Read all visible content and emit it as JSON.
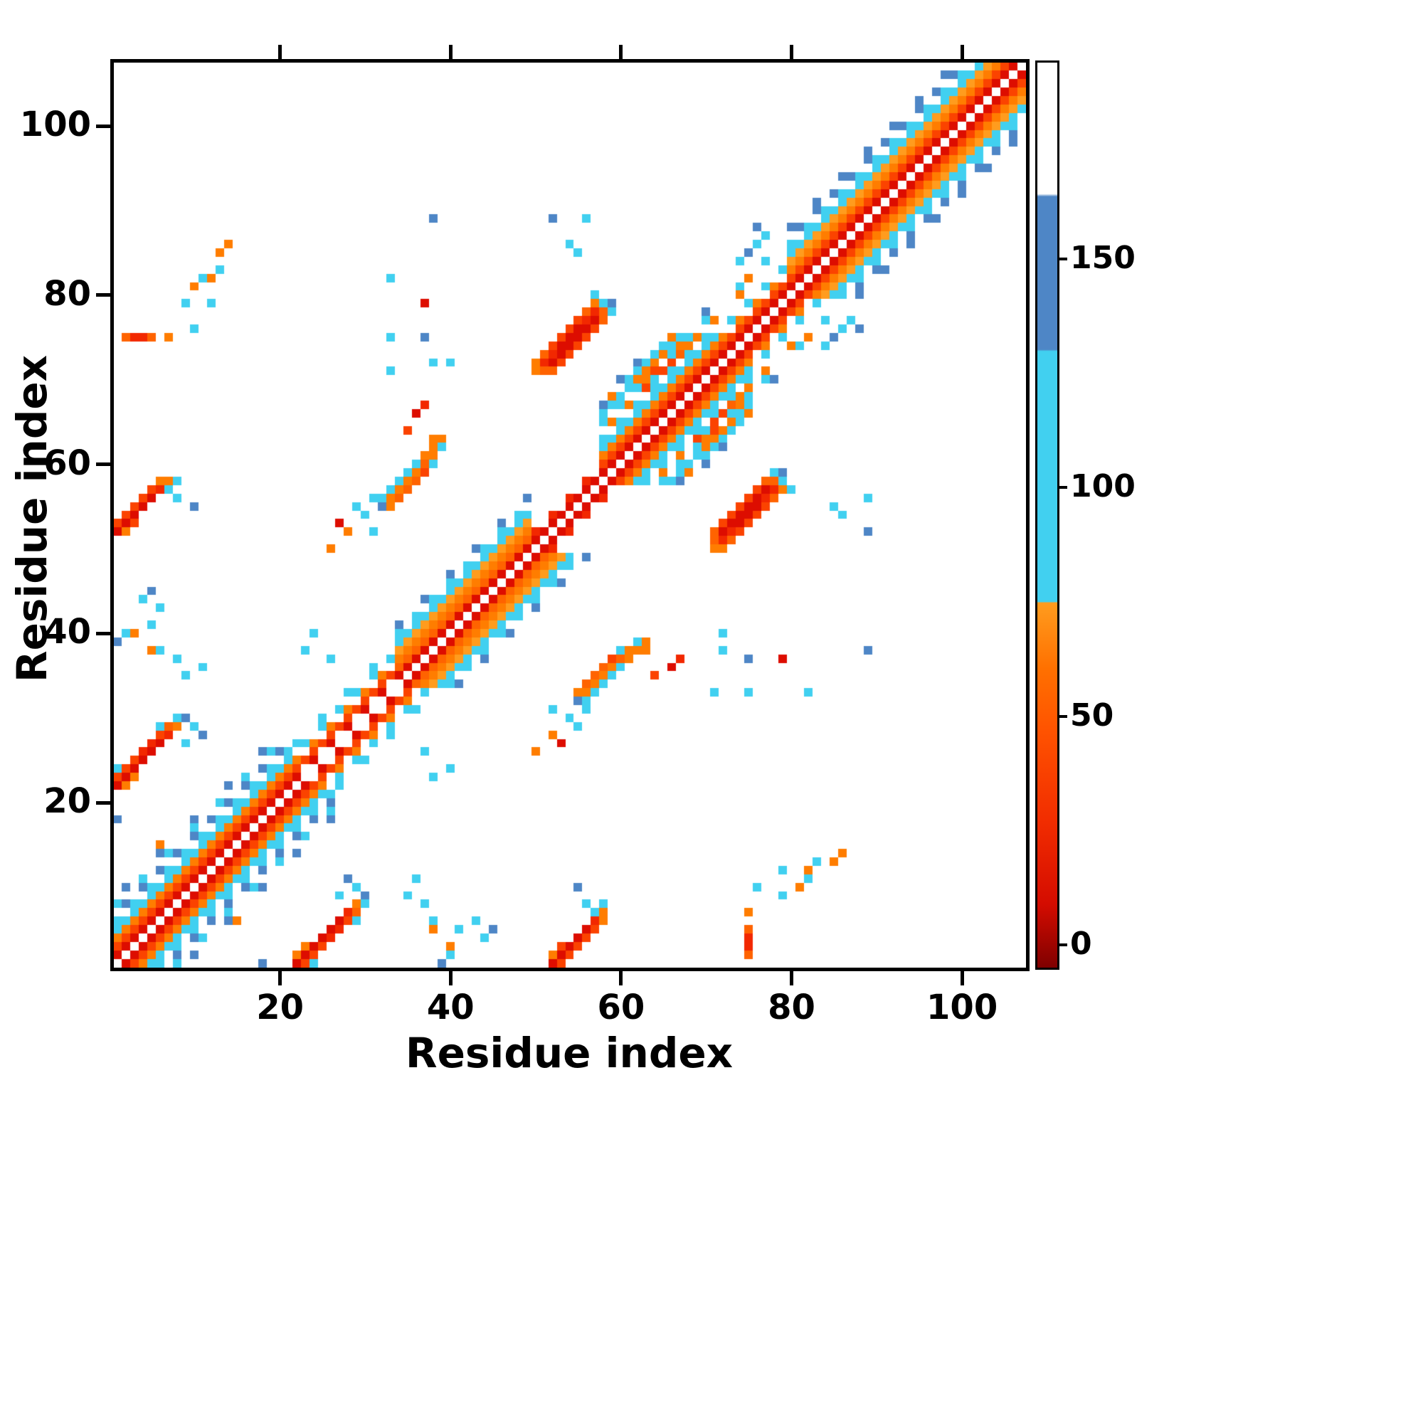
{
  "figure": {
    "background": "#ffffff"
  },
  "chart_data": {
    "type": "heatmap",
    "title": "",
    "xlabel": "Residue index",
    "ylabel": "Residue index",
    "n_residues": 107,
    "x_range": [
      0.5,
      107.5
    ],
    "y_range": [
      0.5,
      107.5
    ],
    "x_ticks": [
      20,
      40,
      60,
      80,
      100
    ],
    "y_ticks": [
      20,
      40,
      60,
      80,
      100
    ],
    "grid": false,
    "symmetric": true,
    "colorbar": {
      "range": [
        -5,
        193
      ],
      "ticks": [
        0,
        50,
        100,
        150
      ],
      "gradient_stops": [
        {
          "p": 0,
          "c": "#7f0000"
        },
        {
          "p": 7,
          "c": "#d40c00"
        },
        {
          "p": 16,
          "c": "#f12c00"
        },
        {
          "p": 26,
          "c": "#ff5200"
        },
        {
          "p": 33,
          "c": "#ff7000"
        },
        {
          "p": 40.3,
          "c": "#ff9c1e"
        },
        {
          "p": 40.45,
          "c": "#41d0f0"
        },
        {
          "p": 68.1,
          "c": "#41d0f0"
        },
        {
          "p": 68.3,
          "c": "#4e86c6"
        },
        {
          "p": 85.2,
          "c": "#4e86c6"
        },
        {
          "p": 85.5,
          "c": "#ffffff"
        },
        {
          "p": 100,
          "c": "#ffffff"
        }
      ]
    },
    "colormap_bins": [
      {
        "max": 12,
        "color": "#dd0d00"
      },
      {
        "max": 24,
        "color": "#f22800"
      },
      {
        "max": 38,
        "color": "#fb4300"
      },
      {
        "max": 52,
        "color": "#ff6300"
      },
      {
        "max": 64,
        "color": "#ff7d00"
      },
      {
        "max": 75,
        "color": "#ff9c1e"
      },
      {
        "max": 130,
        "color": "#41d0f0"
      },
      {
        "max": 164,
        "color": "#4e86c6"
      },
      {
        "max": 999,
        "color": "#ffffff"
      }
    ],
    "band_segments": [
      {
        "from": 1,
        "to": 21,
        "stripes": [
          {
            "off": 1,
            "v": 8
          },
          {
            "off": 2,
            "v": 30
          },
          {
            "off": 3,
            "v": 62
          },
          {
            "off": 4,
            "v": 100
          },
          {
            "off": 5,
            "v": 100,
            "step": 2
          },
          {
            "off": 6,
            "v": 145,
            "step": 2,
            "phase": 1
          },
          {
            "off": 7,
            "v": 100,
            "step": 3
          },
          {
            "off": 8,
            "v": 150,
            "step": 4,
            "phase": 1
          }
        ]
      },
      {
        "from": 22,
        "to": 33,
        "stripes": [
          {
            "off": 1,
            "v": 8,
            "step": 2
          },
          {
            "off": 2,
            "v": 25
          },
          {
            "off": 3,
            "v": 62,
            "step": 2
          },
          {
            "off": 4,
            "v": 100,
            "step": 2,
            "phase": 1
          },
          {
            "off": 5,
            "v": 100,
            "step": 3
          }
        ]
      },
      {
        "from": 34,
        "to": 49,
        "stripes": [
          {
            "off": 1,
            "v": 10
          },
          {
            "off": 2,
            "v": 40
          },
          {
            "off": 3,
            "v": 62
          },
          {
            "off": 4,
            "v": 68
          },
          {
            "off": 5,
            "v": 100
          },
          {
            "off": 6,
            "v": 100,
            "step": 2
          },
          {
            "off": 7,
            "v": 145,
            "step": 3
          }
        ]
      },
      {
        "from": 50,
        "to": 57,
        "stripes": [
          {
            "off": 1,
            "v": 6
          },
          {
            "off": 2,
            "v": 20,
            "step": 2
          }
        ]
      },
      {
        "from": 58,
        "to": 71,
        "stripes": [
          {
            "off": 1,
            "v": 10
          },
          {
            "off": 2,
            "v": 35
          },
          {
            "off": 3,
            "v": 62
          },
          {
            "off": 4,
            "v": 100
          },
          {
            "off": 5,
            "v": 100,
            "step": 2
          },
          {
            "off": 6,
            "v": 62,
            "step": 2,
            "phase": 1
          },
          {
            "off": 7,
            "v": 100,
            "step": 2
          },
          {
            "off": 8,
            "v": 145,
            "step": 3
          }
        ]
      },
      {
        "from": 72,
        "to": 79,
        "stripes": [
          {
            "off": 1,
            "v": 8
          },
          {
            "off": 2,
            "v": 30
          },
          {
            "off": 3,
            "v": 62,
            "step": 2
          },
          {
            "off": 4,
            "v": 100,
            "step": 2,
            "phase": 1
          }
        ]
      },
      {
        "from": 80,
        "to": 106,
        "stripes": [
          {
            "off": 1,
            "v": 10
          },
          {
            "off": 2,
            "v": 35
          },
          {
            "off": 3,
            "v": 62
          },
          {
            "off": 4,
            "v": 68
          },
          {
            "off": 5,
            "v": 100
          },
          {
            "off": 6,
            "v": 100,
            "step": 2
          },
          {
            "off": 7,
            "v": 145,
            "step": 2,
            "phase": 1
          },
          {
            "off": 8,
            "v": 150,
            "step": 3
          }
        ]
      }
    ],
    "contacts": [
      [
        1,
        22,
        12
      ],
      [
        2,
        23,
        10
      ],
      [
        3,
        24,
        8
      ],
      [
        4,
        25,
        6
      ],
      [
        5,
        26,
        6
      ],
      [
        6,
        27,
        10
      ],
      [
        7,
        28,
        18
      ],
      [
        1,
        23,
        35
      ],
      [
        2,
        24,
        30
      ],
      [
        3,
        25,
        25
      ],
      [
        4,
        26,
        22
      ],
      [
        5,
        27,
        20
      ],
      [
        6,
        28,
        30
      ],
      [
        7,
        29,
        45
      ],
      [
        2,
        22,
        62
      ],
      [
        3,
        23,
        62
      ],
      [
        8,
        29,
        62
      ],
      [
        8,
        30,
        100
      ],
      [
        6,
        29,
        100
      ],
      [
        1,
        24,
        100
      ],
      [
        9,
        30,
        148
      ],
      [
        10,
        29,
        100
      ],
      [
        11,
        28,
        148
      ],
      [
        9,
        27,
        100
      ],
      [
        1,
        52,
        12
      ],
      [
        2,
        53,
        10
      ],
      [
        3,
        54,
        8
      ],
      [
        4,
        55,
        6
      ],
      [
        5,
        56,
        8
      ],
      [
        6,
        57,
        15
      ],
      [
        1,
        53,
        32
      ],
      [
        2,
        54,
        28
      ],
      [
        3,
        55,
        25
      ],
      [
        4,
        56,
        28
      ],
      [
        5,
        57,
        35
      ],
      [
        6,
        58,
        55
      ],
      [
        7,
        58,
        62
      ],
      [
        2,
        52,
        55
      ],
      [
        7,
        57,
        100
      ],
      [
        8,
        56,
        100
      ],
      [
        8,
        58,
        100
      ],
      [
        10,
        55,
        148
      ],
      [
        3,
        53,
        25
      ],
      [
        2,
        75,
        45
      ],
      [
        3,
        75,
        15
      ],
      [
        4,
        75,
        15
      ],
      [
        5,
        75,
        40
      ],
      [
        10,
        81,
        60
      ],
      [
        11,
        82,
        100
      ],
      [
        12,
        82,
        62
      ],
      [
        13,
        83,
        100
      ],
      [
        13,
        85,
        62
      ],
      [
        14,
        86,
        60
      ],
      [
        9,
        79,
        100
      ],
      [
        12,
        79,
        100
      ],
      [
        33,
        55,
        55
      ],
      [
        34,
        56,
        50
      ],
      [
        34,
        57,
        62
      ],
      [
        35,
        57,
        45
      ],
      [
        35,
        58,
        55
      ],
      [
        36,
        58,
        40
      ],
      [
        36,
        59,
        55
      ],
      [
        37,
        59,
        35
      ],
      [
        37,
        60,
        50
      ],
      [
        37,
        61,
        62
      ],
      [
        38,
        61,
        55
      ],
      [
        38,
        62,
        62
      ],
      [
        38,
        63,
        62
      ],
      [
        39,
        63,
        55
      ],
      [
        36,
        66,
        10
      ],
      [
        37,
        67,
        15
      ],
      [
        35,
        64,
        25
      ],
      [
        32,
        56,
        100
      ],
      [
        33,
        57,
        100
      ],
      [
        34,
        58,
        100
      ],
      [
        32,
        55,
        148
      ],
      [
        31,
        56,
        100
      ],
      [
        35,
        59,
        100
      ],
      [
        36,
        60,
        100
      ],
      [
        38,
        60,
        100
      ],
      [
        39,
        62,
        100
      ],
      [
        33,
        56,
        62
      ],
      [
        26,
        50,
        60
      ],
      [
        27,
        53,
        12
      ],
      [
        29,
        55,
        100
      ],
      [
        30,
        54,
        100
      ],
      [
        31,
        52,
        100
      ],
      [
        28,
        52,
        62
      ],
      [
        33,
        75,
        100
      ],
      [
        33,
        71,
        100
      ],
      [
        37,
        75,
        148
      ],
      [
        38,
        72,
        100
      ],
      [
        40,
        72,
        100
      ],
      [
        52,
        72,
        8
      ],
      [
        53,
        73,
        6
      ],
      [
        54,
        74,
        5
      ],
      [
        55,
        75,
        5
      ],
      [
        56,
        76,
        6
      ],
      [
        57,
        77,
        8
      ],
      [
        52,
        73,
        15
      ],
      [
        53,
        74,
        12
      ],
      [
        54,
        75,
        10
      ],
      [
        55,
        76,
        12
      ],
      [
        56,
        77,
        15
      ],
      [
        51,
        72,
        20
      ],
      [
        57,
        78,
        20
      ],
      [
        51,
        71,
        45
      ],
      [
        52,
        71,
        40
      ],
      [
        53,
        72,
        30
      ],
      [
        54,
        73,
        25
      ],
      [
        55,
        74,
        25
      ],
      [
        56,
        75,
        28
      ],
      [
        57,
        76,
        32
      ],
      [
        58,
        77,
        40
      ],
      [
        58,
        78,
        50
      ],
      [
        51,
        73,
        40
      ],
      [
        52,
        74,
        35
      ],
      [
        53,
        75,
        30
      ],
      [
        54,
        76,
        32
      ],
      [
        55,
        77,
        38
      ],
      [
        56,
        78,
        45
      ],
      [
        50,
        71,
        62
      ],
      [
        50,
        72,
        55
      ],
      [
        57,
        79,
        60
      ],
      [
        58,
        79,
        100
      ],
      [
        59,
        78,
        100
      ],
      [
        59,
        79,
        148
      ],
      [
        57,
        80,
        100
      ],
      [
        52,
        89,
        148
      ],
      [
        54,
        86,
        100
      ],
      [
        55,
        85,
        100
      ],
      [
        58,
        66,
        100
      ],
      [
        58,
        67,
        145
      ],
      [
        59,
        67,
        100
      ],
      [
        59,
        68,
        62
      ],
      [
        60,
        68,
        100
      ],
      [
        60,
        70,
        145
      ],
      [
        61,
        69,
        100
      ],
      [
        61,
        70,
        100
      ],
      [
        62,
        70,
        55
      ],
      [
        62,
        71,
        100
      ],
      [
        63,
        71,
        62
      ],
      [
        63,
        72,
        100
      ],
      [
        64,
        72,
        55
      ],
      [
        64,
        73,
        100
      ],
      [
        65,
        73,
        62
      ],
      [
        65,
        74,
        100
      ],
      [
        66,
        74,
        100
      ],
      [
        66,
        75,
        62
      ],
      [
        67,
        75,
        100
      ],
      [
        67,
        74,
        55
      ],
      [
        62,
        72,
        145
      ],
      [
        63,
        70,
        60
      ],
      [
        64,
        70,
        100
      ],
      [
        65,
        71,
        30
      ],
      [
        66,
        72,
        30
      ],
      [
        67,
        73,
        40
      ],
      [
        68,
        75,
        100
      ],
      [
        68,
        74,
        60
      ],
      [
        63,
        69,
        35
      ],
      [
        64,
        71,
        35
      ],
      [
        74,
        81,
        100
      ],
      [
        75,
        82,
        62
      ],
      [
        75,
        85,
        145
      ],
      [
        76,
        86,
        100
      ],
      [
        77,
        84,
        100
      ],
      [
        74,
        84,
        100
      ],
      [
        76,
        88,
        148
      ],
      [
        77,
        87,
        100
      ],
      [
        74,
        80,
        55
      ],
      [
        1,
        39,
        148
      ],
      [
        2,
        40,
        100
      ],
      [
        5,
        41,
        100
      ],
      [
        6,
        38,
        100
      ],
      [
        8,
        37,
        100
      ],
      [
        5,
        38,
        62
      ],
      [
        3,
        40,
        62
      ],
      [
        9,
        35,
        100
      ],
      [
        11,
        36,
        100
      ],
      [
        1,
        18,
        148
      ],
      [
        23,
        38,
        100
      ],
      [
        24,
        40,
        100
      ],
      [
        26,
        37,
        100
      ],
      [
        38,
        89,
        148
      ],
      [
        33,
        82,
        100
      ],
      [
        37,
        79,
        12
      ],
      [
        6,
        15,
        62
      ],
      [
        4,
        44,
        100
      ],
      [
        5,
        45,
        148
      ],
      [
        6,
        43,
        100
      ],
      [
        10,
        76,
        100
      ],
      [
        7,
        75,
        55
      ],
      [
        56,
        89,
        100
      ]
    ]
  }
}
